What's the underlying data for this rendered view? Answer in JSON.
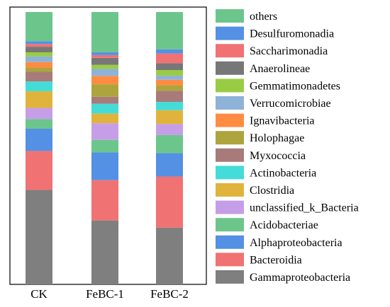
{
  "chart_data": {
    "type": "bar",
    "stacked": true,
    "categories": [
      "CK",
      "FeBC-1",
      "FeBC-2"
    ],
    "ylim": [
      0,
      1
    ],
    "grid": false,
    "legend_position": "right",
    "series": [
      {
        "name": "Gammaproteobacteria",
        "color": "#7f7f7f",
        "values": [
          0.34,
          0.23,
          0.205
        ]
      },
      {
        "name": "Bacteroidia",
        "color": "#f07272",
        "values": [
          0.14,
          0.145,
          0.185
        ]
      },
      {
        "name": "Alphaproteobacteria",
        "color": "#5490e4",
        "values": [
          0.08,
          0.1,
          0.085
        ]
      },
      {
        "name": "Acidobacteriae",
        "color": "#6cc68c",
        "values": [
          0.035,
          0.045,
          0.065
        ]
      },
      {
        "name": "unclassified_k_Bacteria",
        "color": "#c69ee8",
        "values": [
          0.04,
          0.06,
          0.04
        ]
      },
      {
        "name": "Clostridia",
        "color": "#e0b43c",
        "values": [
          0.06,
          0.035,
          0.05
        ]
      },
      {
        "name": "Actinobacteria",
        "color": "#44dcd8",
        "values": [
          0.035,
          0.035,
          0.03
        ]
      },
      {
        "name": "Myxococcia",
        "color": "#a87a7a",
        "values": [
          0.035,
          0.025,
          0.04
        ]
      },
      {
        "name": "Holophagae",
        "color": "#aea43e",
        "values": [
          0.015,
          0.045,
          0.02
        ]
      },
      {
        "name": "Ignavibacteria",
        "color": "#ff8c42",
        "values": [
          0.02,
          0.03,
          0.02
        ]
      },
      {
        "name": "Verrucomicrobiae",
        "color": "#8eb2d8",
        "values": [
          0.02,
          0.025,
          0.015
        ]
      },
      {
        "name": "Gemmatimonadetes",
        "color": "#98cc44",
        "values": [
          0.015,
          0.015,
          0.02
        ]
      },
      {
        "name": "Anaerolineae",
        "color": "#777777",
        "values": [
          0.02,
          0.025,
          0.025
        ]
      },
      {
        "name": "Saccharimonadia",
        "color": "#f07272",
        "values": [
          0.01,
          0.01,
          0.035
        ]
      },
      {
        "name": "Desulfuromonadia",
        "color": "#5490e4",
        "values": [
          0.01,
          0.01,
          0.015
        ]
      },
      {
        "name": "others",
        "color": "#6cc68c",
        "values": [
          0.105,
          0.145,
          0.135
        ]
      }
    ]
  }
}
